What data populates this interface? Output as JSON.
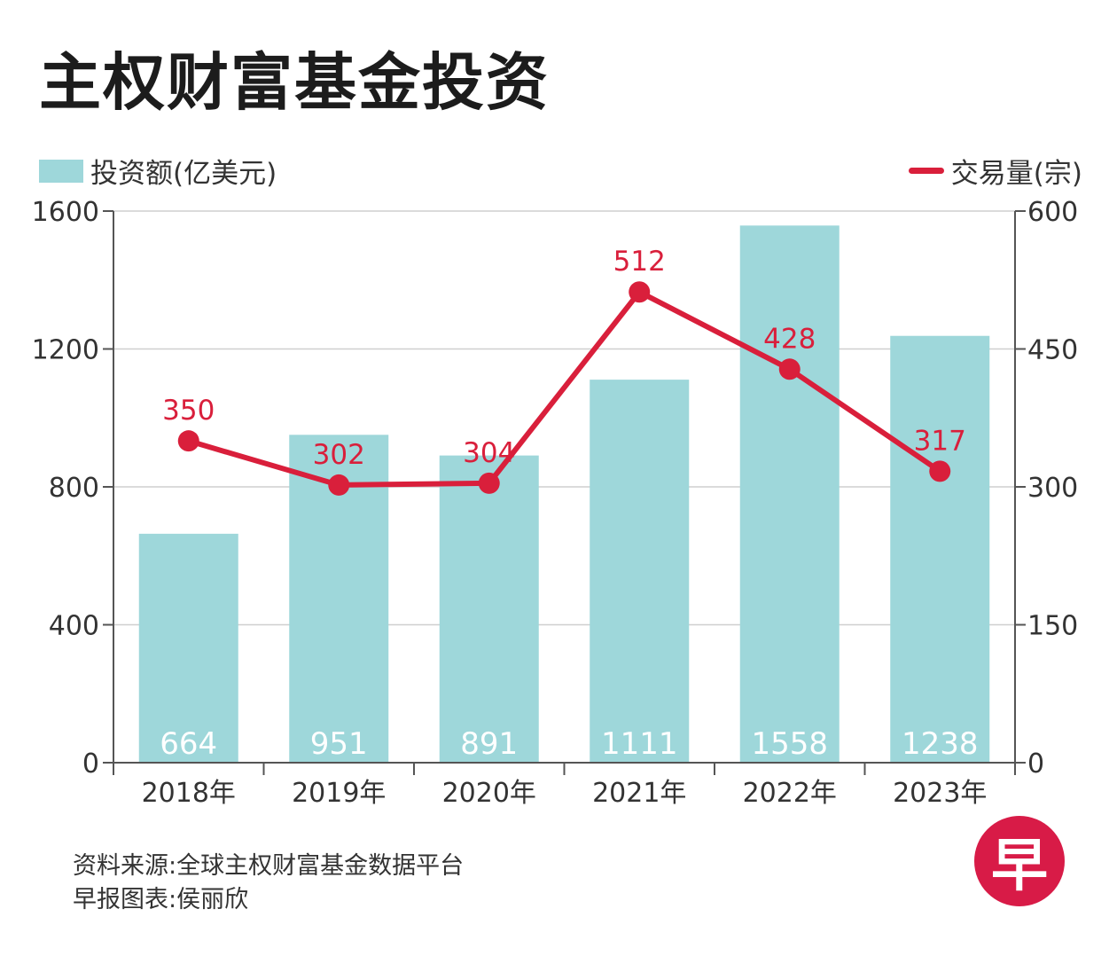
{
  "title": "主权财富基金投资",
  "legend": {
    "bars": "投资额(亿美元)",
    "line": "交易量(宗)"
  },
  "footer": {
    "source": "资料来源:全球主权财富基金数据平台",
    "credit": "早报图表:侯丽欣"
  },
  "logo_text": "早",
  "colors": {
    "bar": "#9ed7da",
    "line": "#d91f3b",
    "logo": "#d81b47"
  },
  "chart_data": {
    "type": "bar+line",
    "categories": [
      "2018年",
      "2019年",
      "2020年",
      "2021年",
      "2022年",
      "2023年"
    ],
    "series": [
      {
        "name": "投资额(亿美元)",
        "type": "bar",
        "axis": "left",
        "values": [
          664,
          951,
          891,
          1111,
          1558,
          1238
        ]
      },
      {
        "name": "交易量(宗)",
        "type": "line",
        "axis": "right",
        "values": [
          350,
          302,
          304,
          512,
          428,
          317
        ]
      }
    ],
    "left_axis": {
      "ylim": [
        0,
        1600
      ],
      "ticks": [
        0,
        400,
        800,
        1200,
        1600
      ]
    },
    "right_axis": {
      "ylim": [
        0,
        600
      ],
      "ticks": [
        0,
        150,
        300,
        450,
        600
      ]
    },
    "grid": true
  }
}
